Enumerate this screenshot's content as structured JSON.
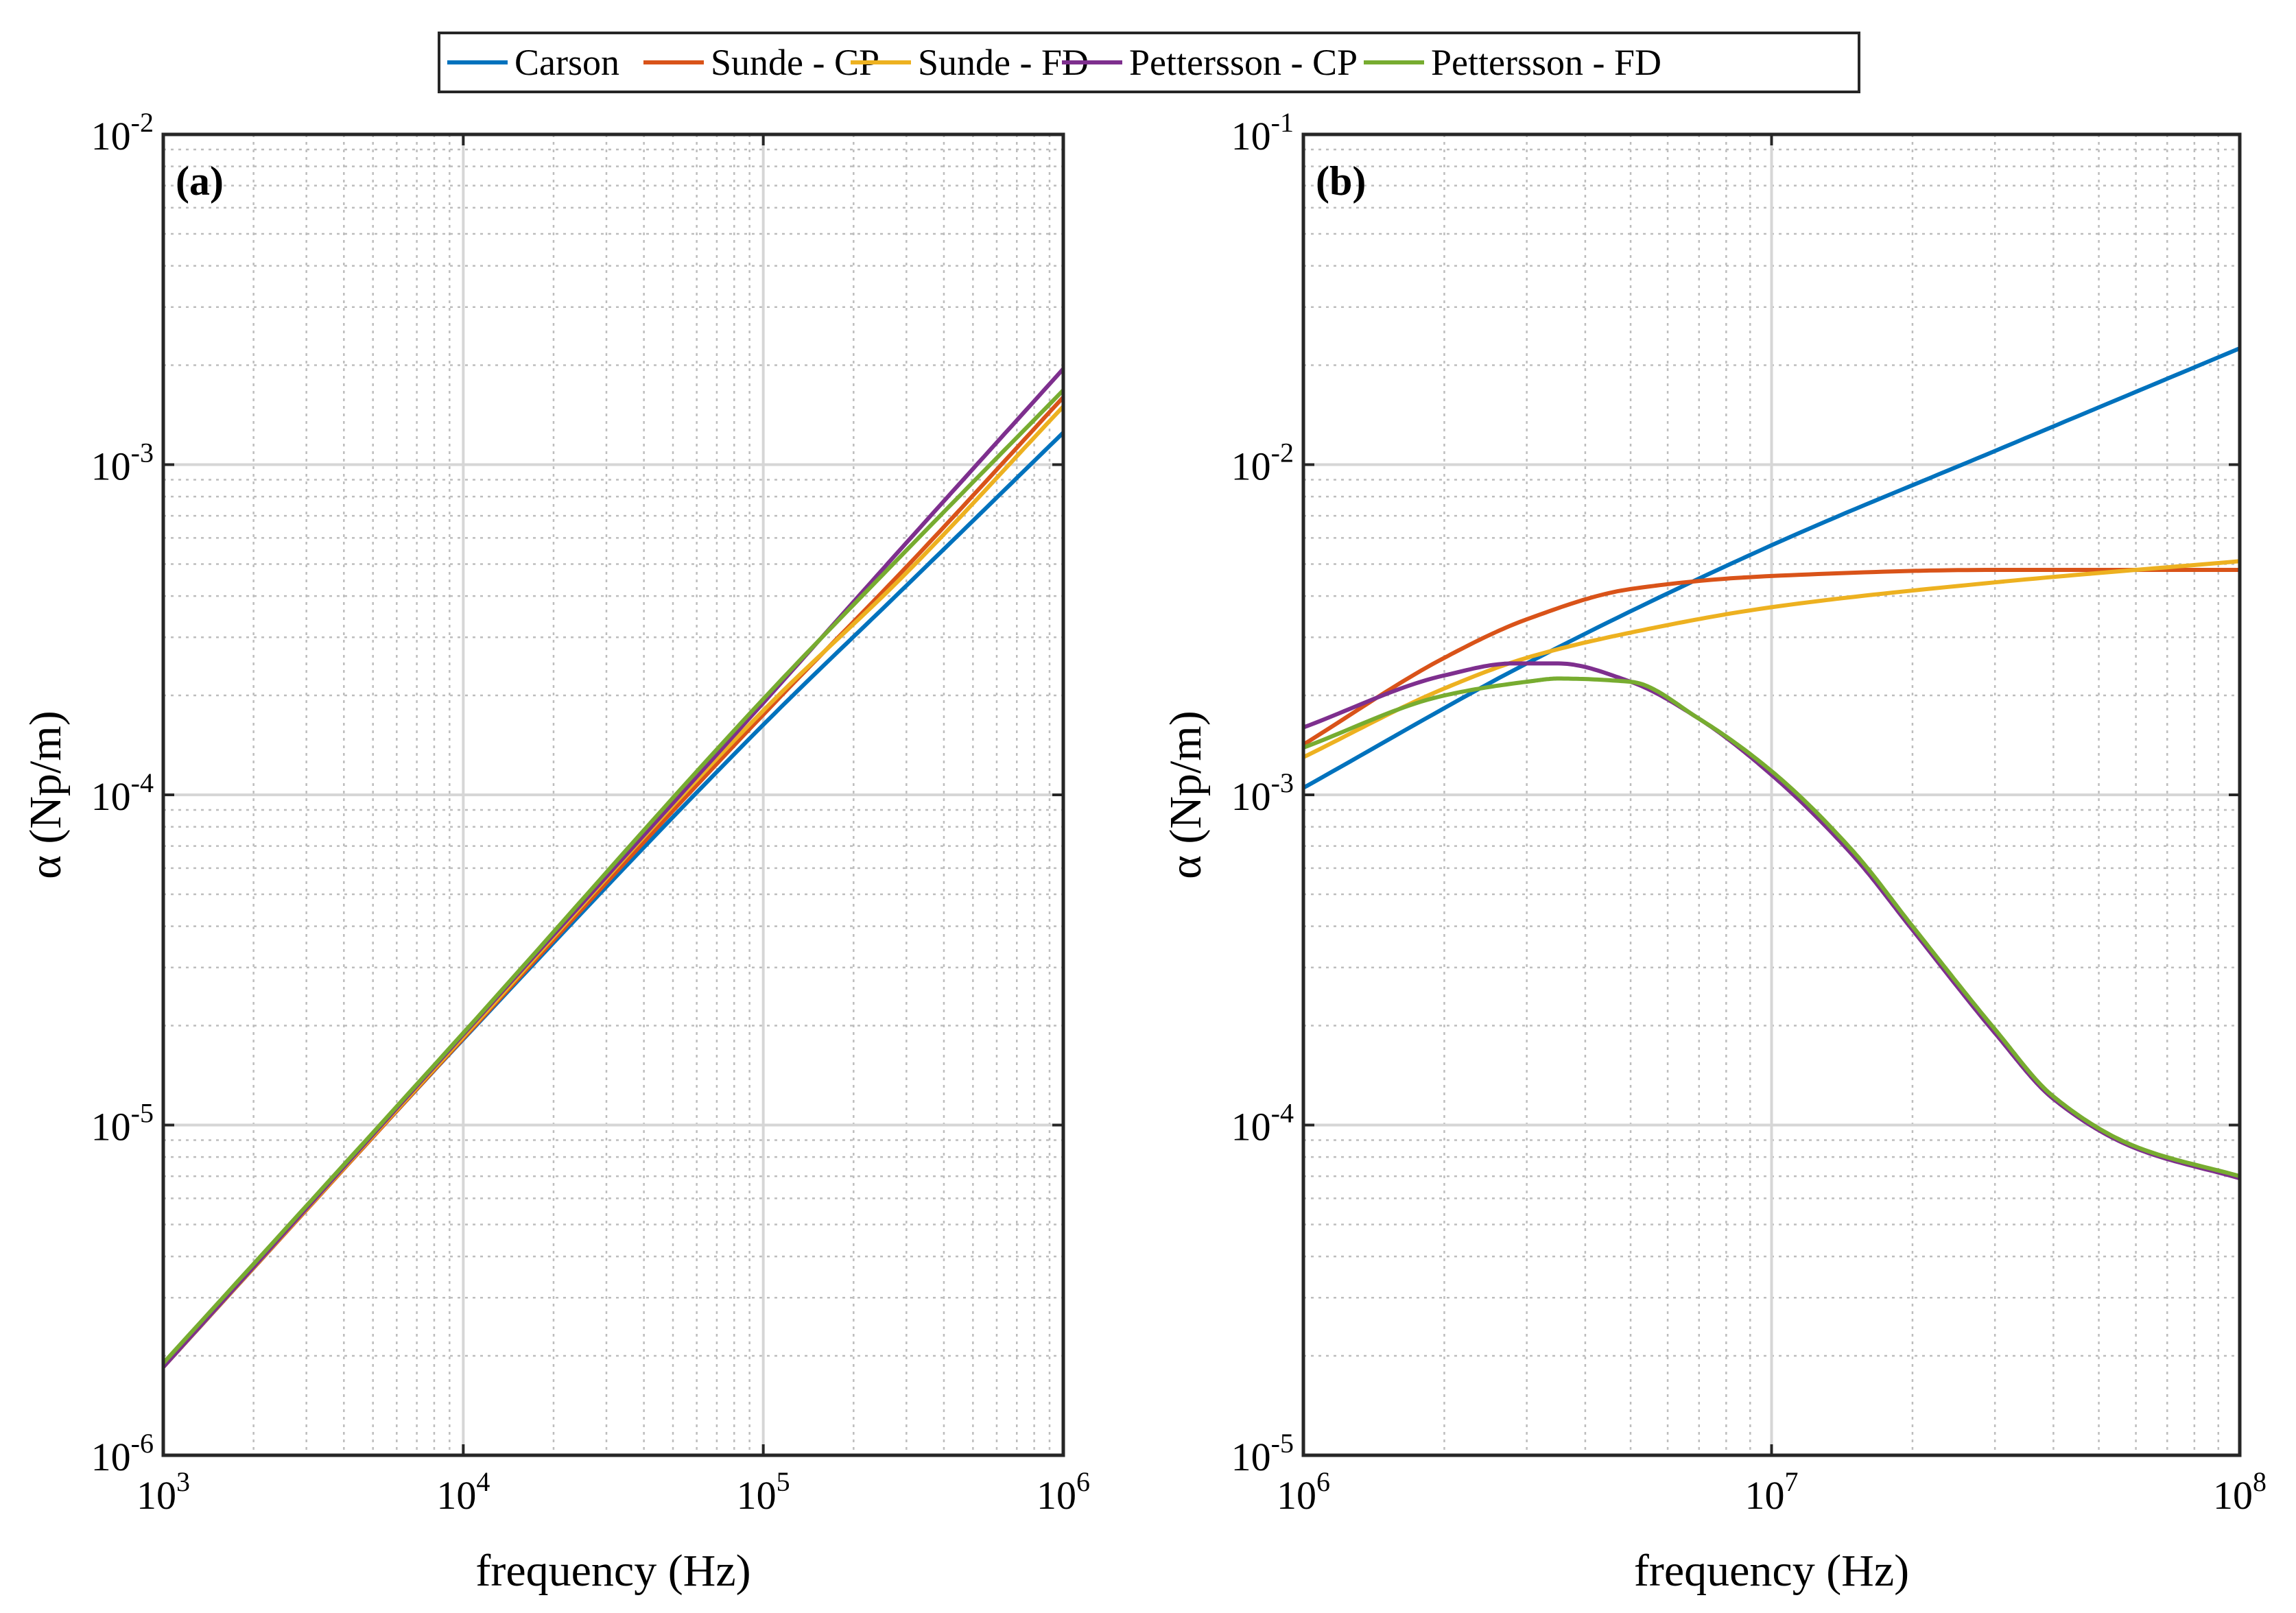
{
  "chart_data": {
    "type": "line",
    "legend": {
      "placement": "top-center",
      "entries": [
        {
          "name": "Carson",
          "color": "#0072BD"
        },
        {
          "name": "Sunde - CP",
          "color": "#D95319"
        },
        {
          "name": "Sunde - FD",
          "color": "#EDB120"
        },
        {
          "name": "Pettersson - CP",
          "color": "#7E2F8E"
        },
        {
          "name": "Pettersson - FD",
          "color": "#77AC30"
        }
      ]
    },
    "panels": [
      {
        "label": "(a)",
        "xlabel": "frequency (Hz)",
        "ylabel": "α (Np/m)",
        "xscale": "log",
        "yscale": "log",
        "xlim": [
          1000,
          1000000
        ],
        "ylim": [
          1e-06,
          0.01
        ],
        "grid": true,
        "xticks": [
          {
            "value": 1000,
            "base": "10",
            "exp": "3"
          },
          {
            "value": 10000,
            "base": "10",
            "exp": "4"
          },
          {
            "value": 100000,
            "base": "10",
            "exp": "5"
          },
          {
            "value": 1000000,
            "base": "10",
            "exp": "6"
          }
        ],
        "yticks": [
          {
            "value": 1e-06,
            "base": "10",
            "exp": "-6"
          },
          {
            "value": 1e-05,
            "base": "10",
            "exp": "-5"
          },
          {
            "value": 0.0001,
            "base": "10",
            "exp": "-4"
          },
          {
            "value": 0.001,
            "base": "10",
            "exp": "-3"
          },
          {
            "value": 0.01,
            "base": "10",
            "exp": "-2"
          }
        ],
        "series": [
          {
            "name": "Carson",
            "x": [
              1000,
              10000,
              100000,
              300000,
              1000000
            ],
            "y": [
              1.85e-06,
              1.82e-05,
              0.000163,
              0.00043,
              0.00125
            ]
          },
          {
            "name": "Sunde - CP",
            "x": [
              1000,
              10000,
              100000,
              300000,
              1000000
            ],
            "y": [
              1.85e-06,
              1.83e-05,
              0.000175,
              0.00049,
              0.0016
            ]
          },
          {
            "name": "Sunde - FD",
            "x": [
              1000,
              10000,
              100000,
              300000,
              1000000
            ],
            "y": [
              1.85e-06,
              1.85e-05,
              0.00018,
              0.00047,
              0.0015
            ]
          },
          {
            "name": "Pettersson - CP",
            "x": [
              1000,
              10000,
              100000,
              300000,
              1000000
            ],
            "y": [
              1.85e-06,
              1.88e-05,
              0.00019,
              0.00058,
              0.00195
            ]
          },
          {
            "name": "Pettersson - FD",
            "x": [
              1000,
              10000,
              100000,
              300000,
              1000000
            ],
            "y": [
              1.9e-06,
              1.9e-05,
              0.000195,
              0.00055,
              0.00168
            ]
          }
        ]
      },
      {
        "label": "(b)",
        "xlabel": "frequency (Hz)",
        "ylabel": "α (Np/m)",
        "xscale": "log",
        "yscale": "log",
        "xlim": [
          1000000,
          100000000
        ],
        "ylim": [
          1e-05,
          0.1
        ],
        "grid": true,
        "xticks": [
          {
            "value": 1000000,
            "base": "10",
            "exp": "6"
          },
          {
            "value": 10000000,
            "base": "10",
            "exp": "7"
          },
          {
            "value": 100000000,
            "base": "10",
            "exp": "8"
          }
        ],
        "yticks": [
          {
            "value": 1e-05,
            "base": "10",
            "exp": "-5"
          },
          {
            "value": 0.0001,
            "base": "10",
            "exp": "-4"
          },
          {
            "value": 0.001,
            "base": "10",
            "exp": "-3"
          },
          {
            "value": 0.01,
            "base": "10",
            "exp": "-2"
          },
          {
            "value": 0.1,
            "base": "10",
            "exp": "-1"
          }
        ],
        "series": [
          {
            "name": "Carson",
            "x": [
              1000000,
              3000000,
              10000000,
              30000000,
              100000000
            ],
            "y": [
              0.00105,
              0.0025,
              0.0057,
              0.011,
              0.0225
            ]
          },
          {
            "name": "Sunde - CP",
            "x": [
              1000000,
              2000000,
              3000000,
              5000000,
              10000000,
              30000000,
              100000000
            ],
            "y": [
              0.00142,
              0.0026,
              0.0034,
              0.0042,
              0.0046,
              0.0048,
              0.0048
            ]
          },
          {
            "name": "Sunde - FD",
            "x": [
              1000000,
              2000000,
              3000000,
              5000000,
              10000000,
              30000000,
              100000000
            ],
            "y": [
              0.0013,
              0.0021,
              0.0026,
              0.0031,
              0.0037,
              0.0044,
              0.0051
            ]
          },
          {
            "name": "Pettersson - CP",
            "x": [
              1000000,
              2000000,
              2800000,
              3500000,
              5000000,
              7000000,
              10000000,
              15000000,
              20000000,
              30000000,
              40000000,
              60000000,
              100000000
            ],
            "y": [
              0.0016,
              0.0023,
              0.0025,
              0.0025,
              0.0022,
              0.0017,
              0.00115,
              0.00065,
              0.00039,
              0.00019,
              0.00012,
              8.5e-05,
              6.9e-05
            ]
          },
          {
            "name": "Pettersson - FD",
            "x": [
              1000000,
              2000000,
              3000000,
              3500000,
              5000000,
              7000000,
              10000000,
              15000000,
              20000000,
              30000000,
              40000000,
              60000000,
              100000000
            ],
            "y": [
              0.00139,
              0.002,
              0.0022,
              0.00225,
              0.0022,
              0.0017,
              0.00118,
              0.00067,
              0.0004,
              0.000195,
              0.000122,
              8.6e-05,
              7e-05
            ]
          }
        ]
      }
    ]
  }
}
